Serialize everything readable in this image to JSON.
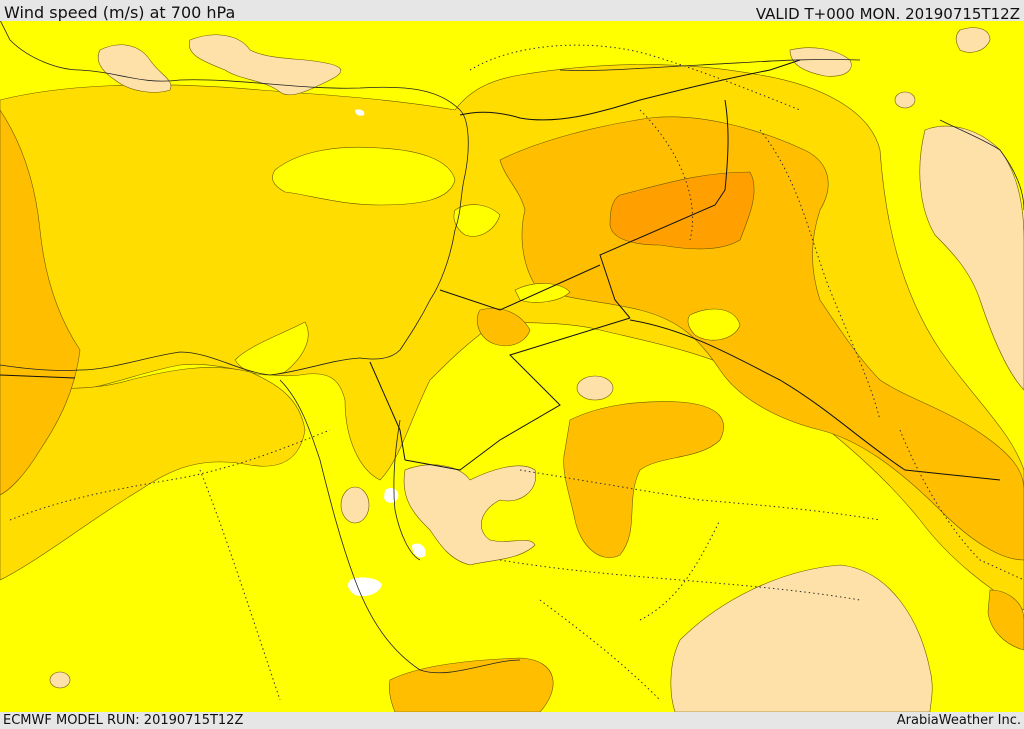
{
  "header": {
    "title": "Wind speed (m/s) at 700 hPa",
    "valid": "VALID T+000 MON. 20190715T12Z"
  },
  "footer": {
    "model_run": "ECMWF MODEL RUN: 20190715T12Z",
    "credit": "ArabiaWeather Inc."
  },
  "colors": {
    "band_lowest": "#fde1a8",
    "band_low": "#ffff00",
    "band_mid": "#ffdd00",
    "band_high": "#ffbf00",
    "band_higher": "#ffa000",
    "water_gap": "#ffffff"
  }
}
